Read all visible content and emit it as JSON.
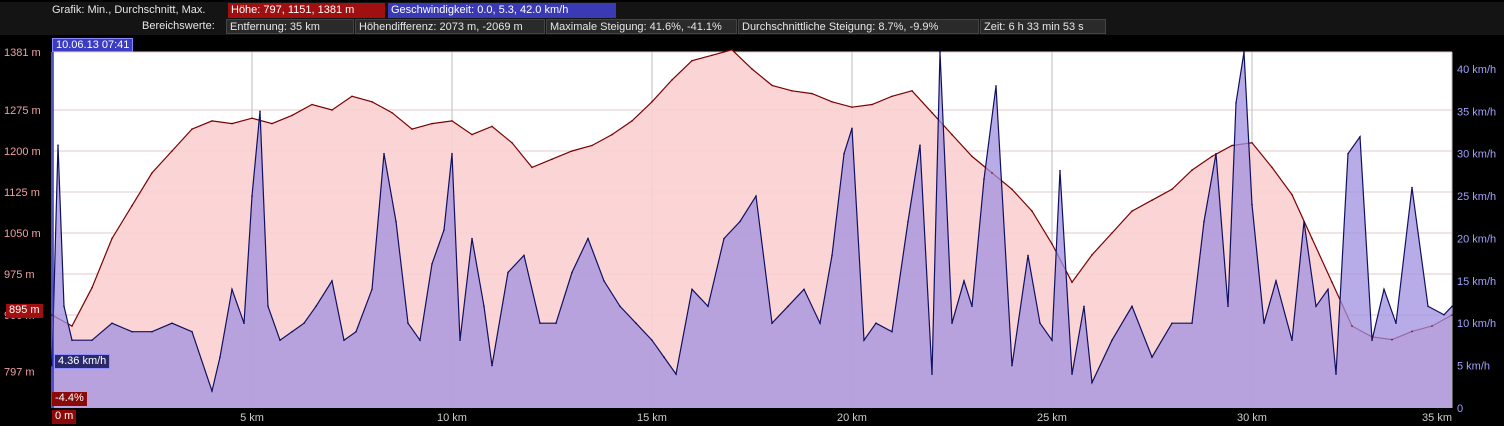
{
  "header": {
    "row1_label": "Grafik: Min., Durchschnitt, Max.",
    "height_stats": "Höhe: 797, 1151, 1381 m",
    "speed_stats": "Geschwindigkeit: 0.0, 5.3, 42.0 km/h",
    "row2_label": "Bereichswerte:",
    "distance": "Entfernung: 35 km",
    "height_diff": "Höhendifferenz: 2073 m, -2069 m",
    "max_slope": "Maximale Steigung: 41.6%, -41.1%",
    "avg_slope": "Durchschnittliche Steigung: 8.7%, -9.9%",
    "time": "Zeit: 6 h 33 min 53 s"
  },
  "cursor": {
    "timestamp": "10.06.13 07:41",
    "height_value": "895 m",
    "speed_value": "4.36 km/h",
    "slope_value": "-4.4%",
    "distance_value": "0 m"
  },
  "colors": {
    "elevation_fill": "#fbd0d0",
    "elevation_line": "#7a0000",
    "speed_fill": "#a090e0",
    "speed_line": "#101060",
    "height_axis_text": "#f0a0a0",
    "speed_axis_text": "#a0a0ff",
    "header_red": "#a01010",
    "header_blue": "#3a3ab4"
  },
  "chart_data": {
    "type": "area",
    "x_unit": "km",
    "xlim": [
      0,
      35
    ],
    "x_ticks": [
      "0 m",
      "5 km",
      "10 km",
      "15 km",
      "20 km",
      "25 km",
      "30 km",
      "35 km"
    ],
    "y_left_ticks": [
      "797 m",
      "900 m",
      "975 m",
      "1050 m",
      "1125 m",
      "1200 m",
      "1275 m",
      "1381 m"
    ],
    "y_right_ticks": [
      "0",
      "5 km/h",
      "10 km/h",
      "15 km/h",
      "20 km/h",
      "25 km/h",
      "30 km/h",
      "35 km/h",
      "40 km/h"
    ],
    "y_left_range": [
      730,
      1381
    ],
    "y_right_range": [
      0,
      42
    ],
    "grid": true,
    "series": [
      {
        "name": "Höhe",
        "axis": "left",
        "x": [
          0,
          0.5,
          1,
          1.5,
          2,
          2.5,
          3,
          3.5,
          4,
          4.5,
          5,
          5.5,
          6,
          6.5,
          7,
          7.5,
          8,
          8.5,
          9,
          9.5,
          10,
          10.5,
          11,
          11.5,
          12,
          12.5,
          13,
          13.5,
          14,
          14.5,
          15,
          15.5,
          16,
          16.5,
          17,
          17.5,
          18,
          18.5,
          19,
          19.5,
          20,
          20.5,
          21,
          21.5,
          22,
          22.5,
          23,
          23.5,
          24,
          24.5,
          25,
          25.5,
          26,
          26.5,
          27,
          27.5,
          28,
          28.5,
          29,
          29.5,
          30,
          30.5,
          31,
          31.5,
          32,
          32.5,
          33,
          33.5,
          34,
          34.5,
          35
        ],
        "y": [
          900,
          880,
          950,
          1040,
          1100,
          1160,
          1200,
          1240,
          1255,
          1250,
          1260,
          1250,
          1265,
          1285,
          1275,
          1300,
          1290,
          1270,
          1240,
          1250,
          1255,
          1230,
          1245,
          1215,
          1170,
          1185,
          1200,
          1210,
          1230,
          1255,
          1290,
          1330,
          1365,
          1375,
          1385,
          1350,
          1320,
          1310,
          1305,
          1290,
          1280,
          1285,
          1300,
          1310,
          1270,
          1230,
          1190,
          1160,
          1130,
          1090,
          1030,
          960,
          1010,
          1050,
          1090,
          1110,
          1130,
          1165,
          1190,
          1210,
          1215,
          1170,
          1120,
          1040,
          960,
          880,
          860,
          855,
          870,
          880,
          900
        ]
      },
      {
        "name": "Geschwindigkeit",
        "axis": "right",
        "x": [
          0,
          0.15,
          0.3,
          0.5,
          1,
          1.5,
          2,
          2.5,
          3,
          3.5,
          4,
          4.2,
          4.5,
          4.8,
          5,
          5.2,
          5.4,
          5.7,
          6,
          6.3,
          6.6,
          7,
          7.3,
          7.6,
          8,
          8.3,
          8.6,
          8.9,
          9.2,
          9.5,
          9.8,
          10,
          10.2,
          10.5,
          10.8,
          11,
          11.4,
          11.8,
          12.2,
          12.6,
          13,
          13.4,
          13.8,
          14.2,
          14.6,
          15,
          15.3,
          15.6,
          16,
          16.4,
          16.8,
          17.2,
          17.6,
          18,
          18.4,
          18.8,
          19.2,
          19.5,
          19.8,
          20,
          20.3,
          20.6,
          21,
          21.4,
          21.7,
          22,
          22.2,
          22.5,
          22.8,
          23,
          23.3,
          23.6,
          24,
          24.4,
          24.7,
          25,
          25.2,
          25.5,
          25.8,
          26,
          26.5,
          27,
          27.5,
          28,
          28.5,
          28.8,
          29.1,
          29.4,
          29.6,
          29.8,
          30,
          30.3,
          30.6,
          31,
          31.3,
          31.6,
          31.9,
          32.1,
          32.4,
          32.7,
          33,
          33.3,
          33.6,
          34,
          34.4,
          34.8,
          35
        ],
        "y": [
          5,
          31,
          12,
          8,
          8,
          10,
          9,
          9,
          10,
          9,
          2,
          6,
          14,
          10,
          25,
          35,
          12,
          8,
          9,
          10,
          12,
          15,
          8,
          9,
          14,
          30,
          22,
          10,
          8,
          17,
          21,
          30,
          8,
          20,
          12,
          5,
          16,
          18,
          10,
          10,
          16,
          20,
          15,
          12,
          10,
          8,
          6,
          4,
          14,
          12,
          20,
          22,
          25,
          10,
          12,
          14,
          10,
          18,
          30,
          33,
          8,
          10,
          9,
          22,
          31,
          4,
          42,
          10,
          15,
          12,
          27,
          38,
          5,
          18,
          10,
          8,
          28,
          4,
          12,
          3,
          8,
          12,
          6,
          10,
          10,
          22,
          30,
          12,
          36,
          42,
          24,
          10,
          15,
          8,
          22,
          12,
          14,
          4,
          30,
          32,
          8,
          14,
          10,
          26,
          12,
          11,
          12
        ]
      }
    ]
  }
}
